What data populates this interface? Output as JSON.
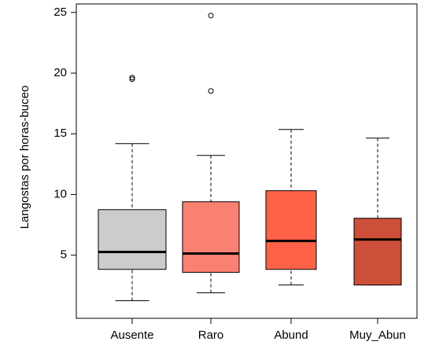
{
  "chart_data": {
    "type": "boxplot",
    "y_label": "Langostas por horas-buceo",
    "categories": [
      "Ausente",
      "Raro",
      "Abund",
      "Muy_Abun"
    ],
    "colors": [
      "#cccccc",
      "#fa8072",
      "#ff6347",
      "#cd4f39"
    ],
    "boxes": [
      {
        "whisker_low": 1.25,
        "q1": 3.83,
        "median": 5.26,
        "q3": 8.75,
        "whisker_high": 14.19,
        "outliers": [
          19.63,
          19.5
        ]
      },
      {
        "whisker_low": 1.9,
        "q1": 3.58,
        "median": 5.13,
        "q3": 9.4,
        "whisker_high": 13.22,
        "outliers": [
          24.74,
          18.53
        ]
      },
      {
        "whisker_low": 2.54,
        "q1": 3.83,
        "median": 6.17,
        "q3": 10.31,
        "whisker_high": 15.36,
        "outliers": []
      },
      {
        "whisker_low": 2.54,
        "q1": 2.54,
        "median": 6.29,
        "q3": 8.04,
        "whisker_high": 14.64,
        "outliers": []
      }
    ],
    "ylim": [
      -0.2,
      25.7
    ],
    "yticks": [
      5,
      10,
      15,
      20,
      25
    ]
  }
}
